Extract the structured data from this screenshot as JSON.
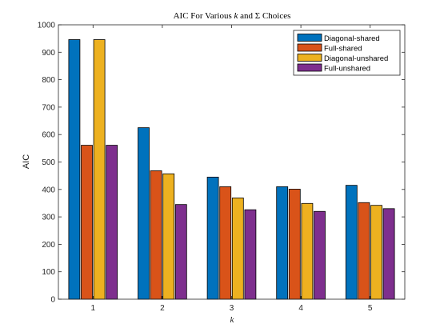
{
  "chart_data": {
    "type": "bar",
    "title_prefix": "AIC For Various ",
    "title_k": "k",
    "title_mid": " and ",
    "title_sigma": "Σ",
    "title_suffix": " Choices",
    "xlabel": "k",
    "ylabel": "AIC",
    "categories": [
      "1",
      "2",
      "3",
      "4",
      "5"
    ],
    "ylim": [
      0,
      1000
    ],
    "yticks": [
      0,
      100,
      200,
      300,
      400,
      500,
      600,
      700,
      800,
      900,
      1000
    ],
    "grid": false,
    "legend_position": "top-right",
    "series": [
      {
        "name": "Diagonal-shared",
        "color": "#0072BD",
        "values": [
          946,
          625,
          445,
          410,
          415
        ]
      },
      {
        "name": "Full-shared",
        "color": "#D95319",
        "values": [
          561,
          468,
          410,
          401,
          352
        ]
      },
      {
        "name": "Diagonal-unshared",
        "color": "#EDB120",
        "values": [
          946,
          457,
          369,
          349,
          342
        ]
      },
      {
        "name": "Full-unshared",
        "color": "#7E2F8E",
        "values": [
          561,
          345,
          326,
          320,
          330
        ]
      }
    ]
  }
}
